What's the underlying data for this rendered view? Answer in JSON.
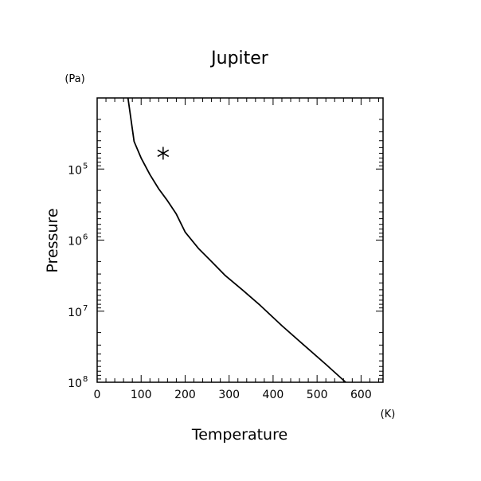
{
  "chart_data": {
    "type": "line",
    "title": "Jupiter",
    "xlabel": "Temperature",
    "ylabel": "Pressure",
    "x_unit": "(K)",
    "y_unit": "(Pa)",
    "xlim": [
      0,
      650
    ],
    "ylim": [
      10000,
      100000000
    ],
    "y_scale": "log",
    "y_reversed": true,
    "grid": false,
    "x_ticks": [
      0,
      100,
      200,
      300,
      400,
      500,
      600
    ],
    "x_tick_labels": [
      "0",
      "100",
      "200",
      "300",
      "400",
      "500",
      "600"
    ],
    "y_ticks": [
      {
        "value": 100000,
        "base": "10",
        "exp": "5"
      },
      {
        "value": 1000000,
        "base": "10",
        "exp": "6"
      },
      {
        "value": 10000000,
        "base": "10",
        "exp": "7"
      },
      {
        "value": 100000000,
        "base": "10",
        "exp": "8"
      }
    ],
    "series": [
      {
        "points": [
          [
            70,
            10000
          ],
          [
            84,
            41000
          ],
          [
            100,
            70000
          ],
          [
            120,
            120000
          ],
          [
            140,
            190000
          ],
          [
            160,
            280000
          ],
          [
            180,
            430000
          ],
          [
            200,
            770000
          ],
          [
            230,
            1300000
          ],
          [
            260,
            2000000
          ],
          [
            290,
            3100000
          ],
          [
            330,
            5000000
          ],
          [
            370,
            8200000
          ],
          [
            420,
            16000000
          ],
          [
            470,
            30000000
          ],
          [
            520,
            56000000
          ],
          [
            565,
            100000000
          ]
        ]
      }
    ],
    "markers": [
      {
        "symbol": "asterisk",
        "x": 150,
        "y": 60000
      }
    ]
  }
}
